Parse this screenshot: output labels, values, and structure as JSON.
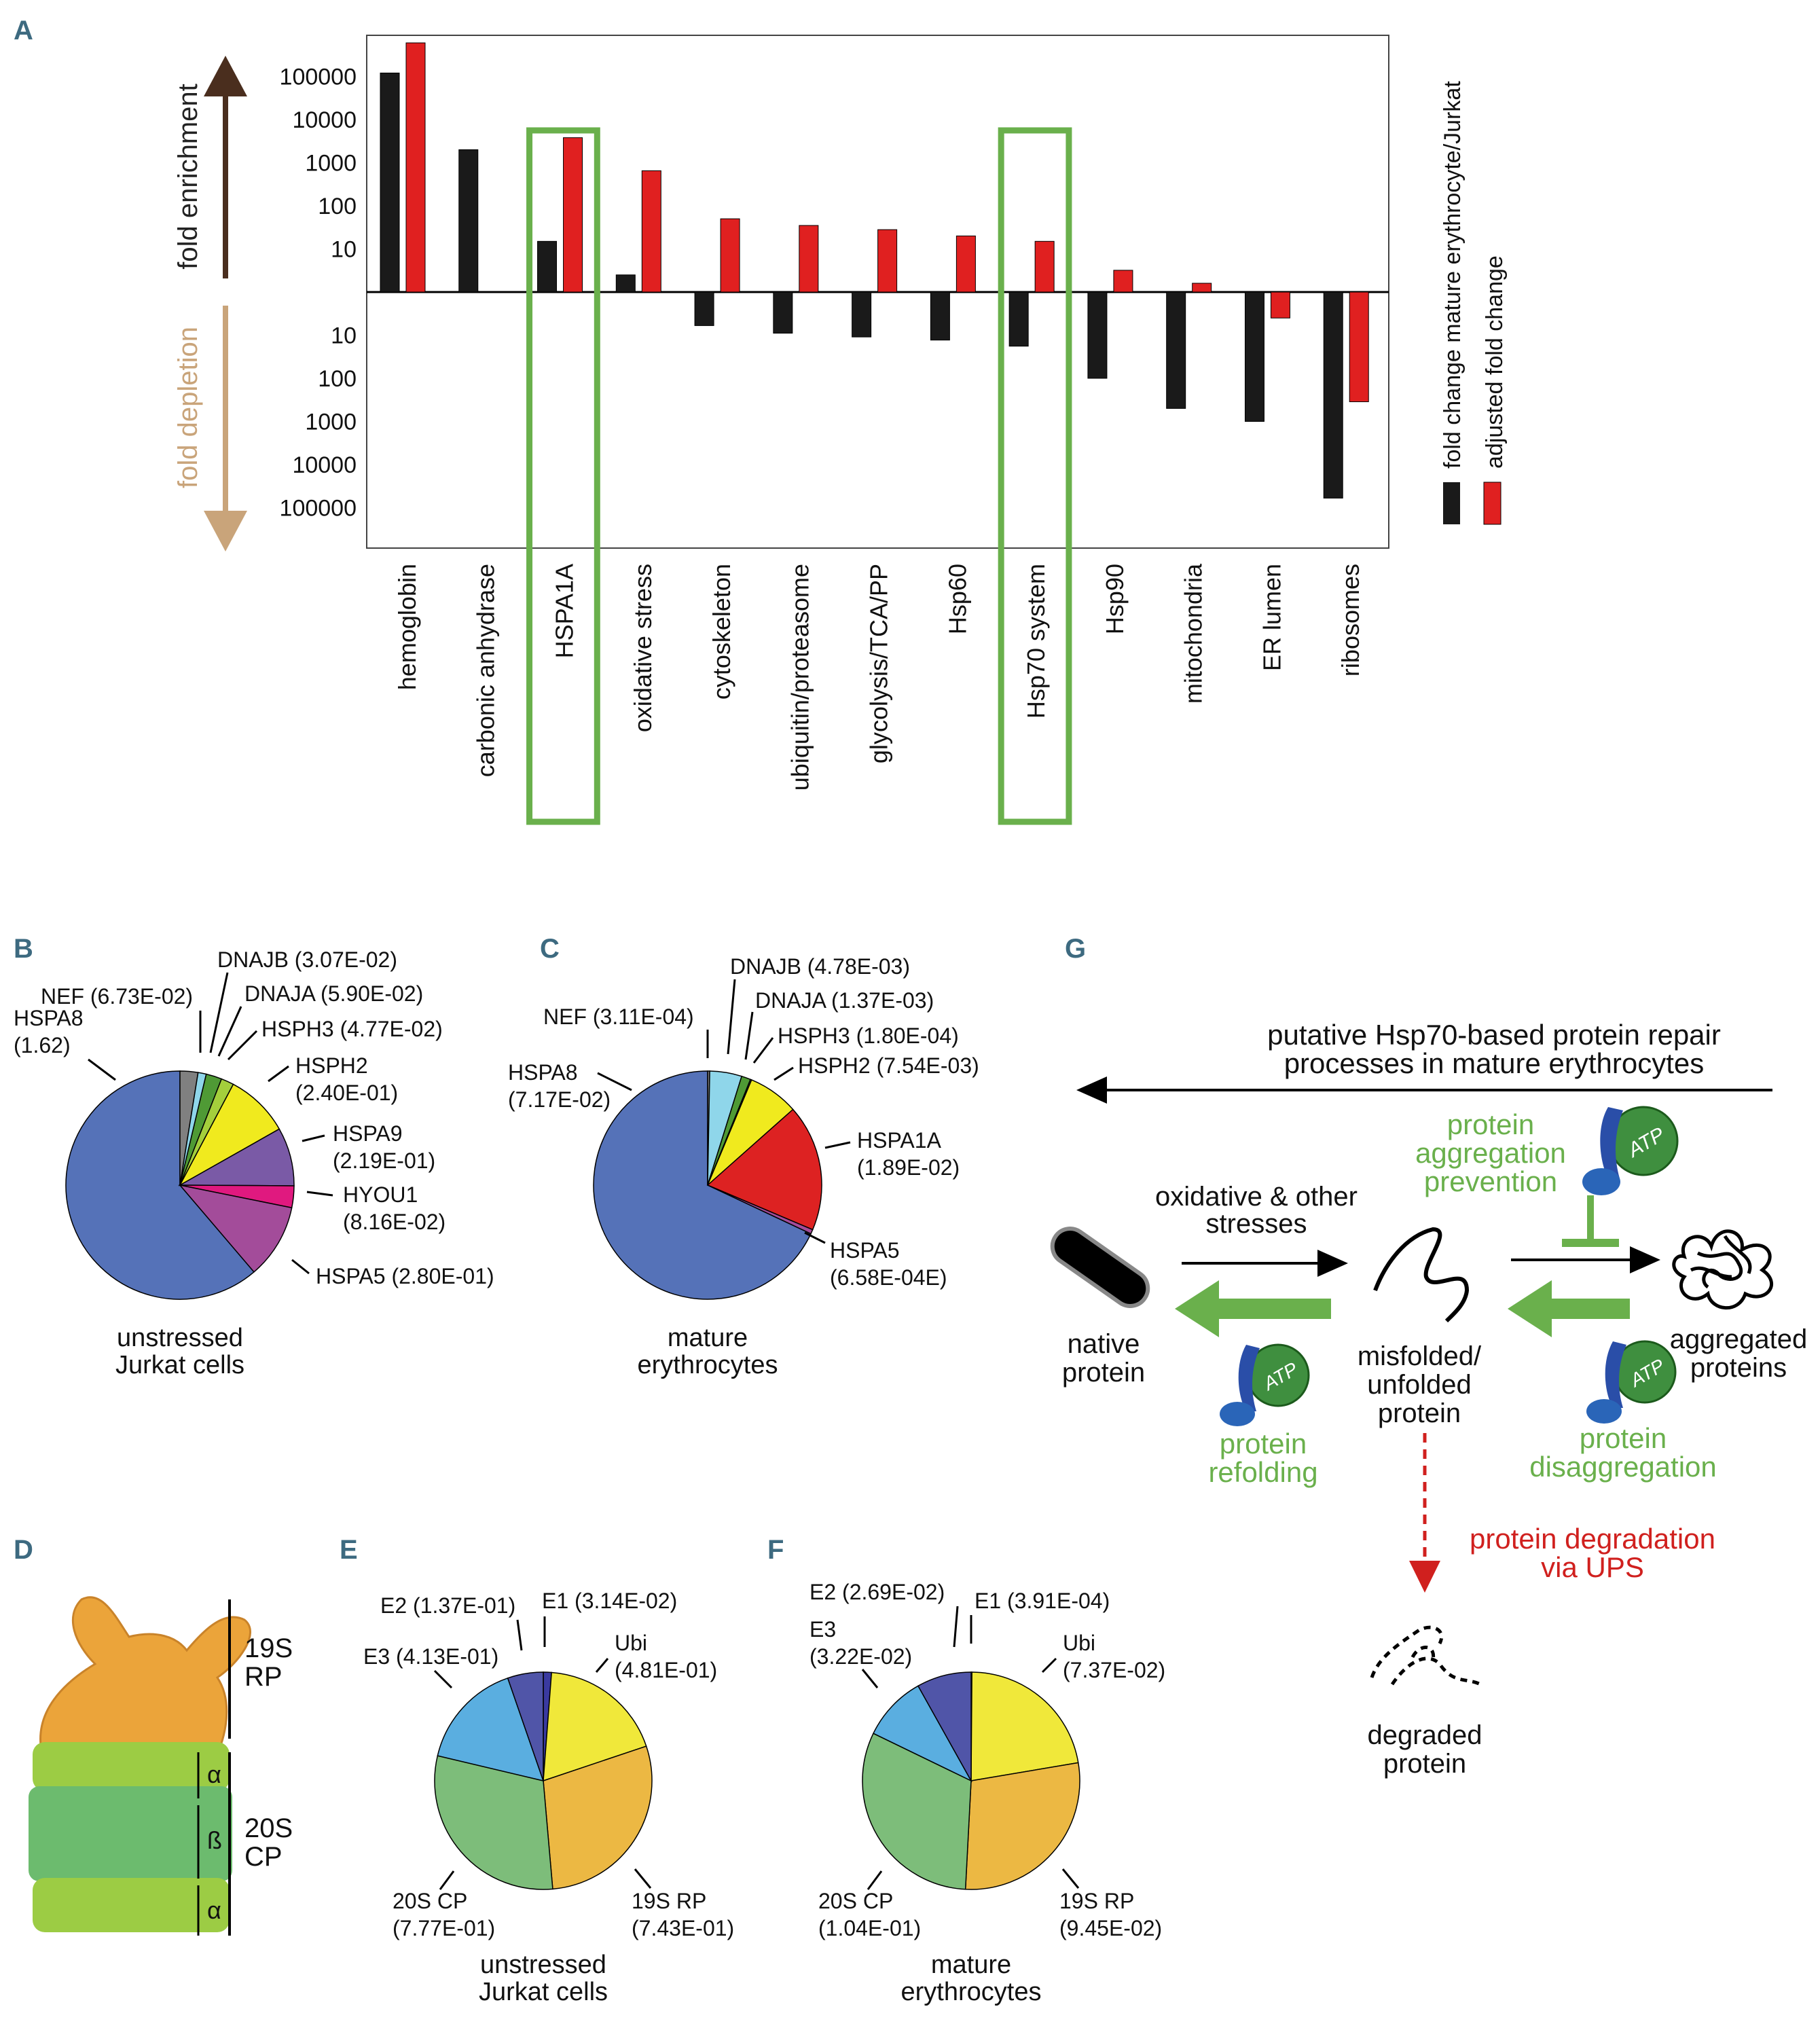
{
  "colors": {
    "black_bar": "#1a1a1a",
    "red_bar": "#e02020",
    "green_box": "#6ab04c",
    "enrich_arrow": "#4a2e1e",
    "deplete_arrow": "#c9a47a",
    "panel_letter": "#3d6a80",
    "green_text": "#6ab04c",
    "red_text": "#d0201e"
  },
  "panels": {
    "a": {
      "letter": "A"
    },
    "b": {
      "letter": "B",
      "caption": [
        "unstressed",
        "Jurkat cells"
      ]
    },
    "c": {
      "letter": "C",
      "caption": [
        "mature",
        "erythrocytes"
      ]
    },
    "d": {
      "letter": "D",
      "rp_label": [
        "19S",
        "RP"
      ],
      "cp_label": [
        "20S",
        "CP"
      ],
      "alpha1": "α",
      "beta": "ß",
      "alpha2": "α"
    },
    "e": {
      "letter": "E",
      "caption": [
        "unstressed",
        "Jurkat cells"
      ]
    },
    "f": {
      "letter": "F",
      "caption": [
        "mature",
        "erythrocytes"
      ]
    },
    "g": {
      "letter": "G",
      "repair_text": [
        "putative Hsp70-based protein repair",
        "processes in mature erythrocytes"
      ],
      "prevention_text": [
        "protein",
        "aggregation",
        "prevention"
      ],
      "stress_text": [
        "oxidative & other",
        "stresses"
      ],
      "native_text": [
        "native",
        "protein"
      ],
      "misfolded_text": [
        "misfolded/",
        "unfolded",
        "protein"
      ],
      "aggregated_text": [
        "aggregated",
        "proteins"
      ],
      "refolding_text": [
        "protein",
        "refolding"
      ],
      "disaggregation_text": [
        "protein",
        "disaggregation"
      ],
      "degradation_text": [
        "protein degradation",
        "via UPS"
      ],
      "degraded_text": [
        "degraded",
        "protein"
      ],
      "atp": "ATP"
    }
  },
  "chart_data": [
    {
      "id": "A",
      "type": "bar",
      "scale": "log, diverging (enrichment up, depletion down)",
      "categories": [
        "hemoglobin",
        "carbonic anhydrase",
        "HSPA1A",
        "oxidative stress",
        "cytoskeleton",
        "ubiquitin/proteasome",
        "glycolysis/TCA/PP",
        "Hsp60",
        "Hsp70 system",
        "Hsp90",
        "mitochondria",
        "ER lumen",
        "ribosomes"
      ],
      "highlighted": [
        "HSPA1A",
        "Hsp70 system"
      ],
      "series": [
        {
          "name": "fold change mature erythrocyte/Jurkat",
          "values": [
            120000,
            2000,
            15,
            2.5,
            -6,
            -9,
            -11,
            -13,
            -18,
            -100,
            -500,
            -1000,
            -60000
          ]
        },
        {
          "name": "adjusted fold change",
          "values": [
            600000,
            null,
            3800,
            650,
            50,
            35,
            28,
            20,
            15,
            3.2,
            1.6,
            -4,
            -350
          ]
        }
      ],
      "enrich_ticks": [
        "100000",
        "10000",
        "1000",
        "100",
        "10"
      ],
      "deplete_ticks": [
        "10",
        "100",
        "1000",
        "10000",
        "100000"
      ],
      "ylabel_enrich": "fold enrichment",
      "ylabel_deplete": "fold depletion",
      "legend": [
        "fold change mature erythrocyte/Jurkat",
        "adjusted fold change"
      ]
    },
    {
      "id": "B",
      "type": "pie",
      "slices": [
        {
          "label": "HSPA8",
          "value_text": "(1.62)",
          "value": 1.62,
          "color": "#5572b8"
        },
        {
          "label": "NEF",
          "value_text": "(6.73E-02)",
          "value": 0.0673,
          "color": "#808080"
        },
        {
          "label": "DNAJB",
          "value_text": "(3.07E-02)",
          "value": 0.0307,
          "color": "#8fd6ea"
        },
        {
          "label": "DNAJA",
          "value_text": "(5.90E-02)",
          "value": 0.059,
          "color": "#4f9a35"
        },
        {
          "label": "HSPH3",
          "value_text": "(4.77E-02)",
          "value": 0.0477,
          "color": "#a4cf3c"
        },
        {
          "label": "HSPH2",
          "value_text": "(2.40E-01)",
          "value": 0.24,
          "color": "#f0ea1e"
        },
        {
          "label": "HSPA9",
          "value_text": "(2.19E-01)",
          "value": 0.219,
          "color": "#7a5aa6"
        },
        {
          "label": "HYOU1",
          "value_text": "(8.16E-02)",
          "value": 0.0816,
          "color": "#e0197f"
        },
        {
          "label": "HSPA5",
          "value_text": "(2.80E-01)",
          "value": 0.28,
          "color": "#a34c9a"
        }
      ]
    },
    {
      "id": "C",
      "type": "pie",
      "slices": [
        {
          "label": "HSPA8",
          "value_text": "(7.17E-02)",
          "value": 0.0717,
          "color": "#5572b8"
        },
        {
          "label": "NEF",
          "value_text": "(3.11E-04)",
          "value": 0.000311,
          "color": "#808080"
        },
        {
          "label": "DNAJB",
          "value_text": "(4.78E-03)",
          "value": 0.00478,
          "color": "#8fd6ea"
        },
        {
          "label": "DNAJA",
          "value_text": "(1.37E-03)",
          "value": 0.00137,
          "color": "#4f9a35"
        },
        {
          "label": "HSPH3",
          "value_text": "(1.80E-04)",
          "value": 0.00018,
          "color": "#a4cf3c"
        },
        {
          "label": "HSPH2",
          "value_text": "(7.54E-03)",
          "value": 0.00754,
          "color": "#f0ea1e"
        },
        {
          "label": "HSPA1A",
          "value_text": "(1.89E-02)",
          "value": 0.0189,
          "color": "#dd2222"
        },
        {
          "label": "HSPA5",
          "value_text": "(6.58E-04E)",
          "value": 0.000658,
          "color": "#a34c9a"
        }
      ]
    },
    {
      "id": "E",
      "type": "pie",
      "slices": [
        {
          "label": "E1",
          "value_text": "(3.14E-02)",
          "value": 0.0314,
          "color": "#3a3aa0"
        },
        {
          "label": "Ubi",
          "value_text": "(4.81E-01)",
          "value": 0.481,
          "color": "#f0e83a"
        },
        {
          "label": "19S RP",
          "value_text": "(7.43E-01)",
          "value": 0.743,
          "color": "#ecb843"
        },
        {
          "label": "20S CP",
          "value_text": "(7.77E-01)",
          "value": 0.777,
          "color": "#7dbd7a"
        },
        {
          "label": "E3",
          "value_text": "(4.13E-01)",
          "value": 0.413,
          "color": "#5aaee0"
        },
        {
          "label": "E2",
          "value_text": "(1.37E-01)",
          "value": 0.137,
          "color": "#5055a8"
        }
      ]
    },
    {
      "id": "F",
      "type": "pie",
      "slices": [
        {
          "label": "E1",
          "value_text": "(3.91E-04)",
          "value": 0.000391,
          "color": "#3a3aa0"
        },
        {
          "label": "Ubi",
          "value_text": "(7.37E-02)",
          "value": 0.0737,
          "color": "#f0e83a"
        },
        {
          "label": "19S RP",
          "value_text": "(9.45E-02)",
          "value": 0.0945,
          "color": "#ecb843"
        },
        {
          "label": "20S CP",
          "value_text": "(1.04E-01)",
          "value": 0.104,
          "color": "#7dbd7a"
        },
        {
          "label": "E3",
          "value_text": "(3.22E-02)",
          "value": 0.0322,
          "color": "#5aaee0"
        },
        {
          "label": "E2",
          "value_text": "(2.69E-02)",
          "value": 0.0269,
          "color": "#5055a8"
        }
      ]
    }
  ]
}
